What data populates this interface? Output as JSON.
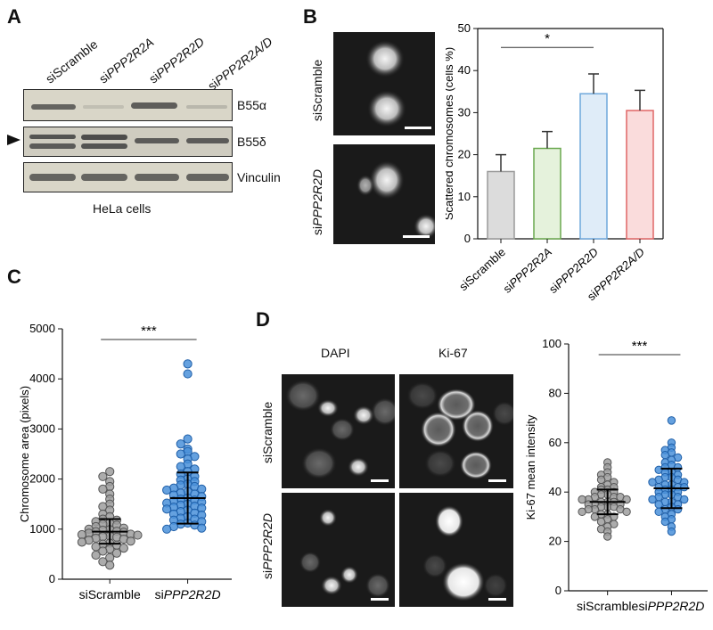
{
  "panels": {
    "A": {
      "label": "A",
      "lanes": [
        {
          "pre": "si",
          "name": "Scramble",
          "italic": false
        },
        {
          "pre": "si",
          "name": "PPP2R2A",
          "italic": true
        },
        {
          "pre": "si",
          "name": "PPP2R2D",
          "italic": true
        },
        {
          "pre": "si",
          "name": "PPP2R2A/D",
          "italic": true
        }
      ],
      "blots": [
        "B55α",
        "B55δ",
        "Vinculin"
      ],
      "caption": "HeLa cells",
      "arrow_row": "B55δ"
    },
    "B": {
      "label": "B",
      "image_rows": [
        {
          "pre": "si",
          "name": "Scramble",
          "italic": false
        },
        {
          "pre": "si",
          "name": "PPP2R2D",
          "italic": true
        }
      ]
    },
    "C": {
      "label": "C"
    },
    "D": {
      "label": "D",
      "columns": [
        "DAPI",
        "Ki-67"
      ],
      "image_rows": [
        {
          "pre": "si",
          "name": "Scramble",
          "italic": false
        },
        {
          "pre": "si",
          "name": "PPP2R2D",
          "italic": true
        }
      ]
    }
  },
  "chart_data": [
    {
      "panel": "B",
      "type": "bar",
      "ylabel": "Scattered chromosomes (cells %)",
      "ylim": [
        0,
        50
      ],
      "yticks": [
        0,
        10,
        20,
        30,
        40,
        50
      ],
      "categories": [
        {
          "pre": "si",
          "name": "Scramble",
          "italic": false
        },
        {
          "pre": "si",
          "name": "PPP2R2A",
          "italic": true
        },
        {
          "pre": "si",
          "name": "PPP2R2D",
          "italic": true
        },
        {
          "pre": "si",
          "name": "PPP2R2A/D",
          "italic": true
        }
      ],
      "values": [
        16,
        21.5,
        34.5,
        30.5
      ],
      "errors": [
        4,
        4,
        4.7,
        4.8
      ],
      "colors": [
        "#9a9a9a",
        "#6aa84f",
        "#6fa8dc",
        "#e06666"
      ],
      "fills": [
        "#dcdcdc",
        "#e5f2dc",
        "#dfecf8",
        "#fadcdc"
      ],
      "significance": {
        "from": 0,
        "to": 2,
        "text": "*"
      }
    },
    {
      "panel": "C",
      "type": "scatter",
      "ylabel": "Chromosome area (pixels)",
      "ylim": [
        0,
        5000
      ],
      "yticks": [
        0,
        1000,
        2000,
        3000,
        4000,
        5000
      ],
      "categories": [
        {
          "pre": "si",
          "name": "Scramble",
          "italic": false
        },
        {
          "pre": "si",
          "name": "PPP2R2D",
          "italic": true
        }
      ],
      "groups": [
        {
          "mean": 950,
          "sd_low": 710,
          "sd_high": 1200,
          "color": "#9e9e9e",
          "edge": "#555555",
          "values": [
            2150,
            2050,
            1950,
            1850,
            1800,
            1700,
            1600,
            1500,
            1450,
            1380,
            1300,
            1250,
            1200,
            1180,
            1150,
            1120,
            1100,
            1080,
            1050,
            1020,
            1000,
            990,
            980,
            960,
            950,
            940,
            920,
            900,
            890,
            880,
            860,
            850,
            840,
            820,
            800,
            780,
            760,
            740,
            720,
            700,
            680,
            650,
            620,
            600,
            560,
            520,
            480,
            430,
            350,
            280
          ]
        },
        {
          "mean": 1620,
          "sd_low": 1110,
          "sd_high": 2130,
          "color": "#4a90d9",
          "edge": "#1f5fa8",
          "values": [
            4300,
            4100,
            2800,
            2700,
            2600,
            2550,
            2500,
            2450,
            2400,
            2300,
            2250,
            2200,
            2150,
            2100,
            2050,
            2000,
            1980,
            1950,
            1900,
            1880,
            1850,
            1820,
            1800,
            1780,
            1750,
            1720,
            1700,
            1680,
            1650,
            1620,
            1600,
            1580,
            1560,
            1540,
            1520,
            1500,
            1480,
            1460,
            1440,
            1420,
            1400,
            1380,
            1350,
            1320,
            1300,
            1280,
            1250,
            1220,
            1200,
            1180,
            1150,
            1120,
            1100,
            1080,
            1050,
            1020,
            1000
          ]
        }
      ],
      "significance": {
        "from": 0,
        "to": 1,
        "text": "***"
      }
    },
    {
      "panel": "D",
      "type": "scatter",
      "ylabel": "Ki-67 mean intensity",
      "ylim": [
        0,
        100
      ],
      "yticks": [
        0,
        20,
        40,
        60,
        80,
        100
      ],
      "categories": [
        {
          "pre": "",
          "name": "siScramble",
          "italic": false
        },
        {
          "pre": "si",
          "name": "PPP2R2D",
          "italic": true
        }
      ],
      "groups": [
        {
          "mean": 36,
          "sd_low": 31,
          "sd_high": 41,
          "color": "#9e9e9e",
          "edge": "#555555",
          "values": [
            52,
            50,
            48,
            47,
            46,
            45,
            44,
            43,
            42,
            42,
            41,
            41,
            40,
            40,
            39,
            39,
            38,
            38,
            38,
            37,
            37,
            37,
            36,
            36,
            36,
            35,
            35,
            35,
            34,
            34,
            34,
            33,
            33,
            33,
            32,
            32,
            31,
            31,
            30,
            30,
            29,
            28,
            27,
            26,
            25,
            24,
            22
          ]
        },
        {
          "mean": 41.5,
          "sd_low": 33.5,
          "sd_high": 49.5,
          "color": "#4a90d9",
          "edge": "#1f5fa8",
          "values": [
            69,
            60,
            58,
            57,
            56,
            55,
            54,
            53,
            52,
            51,
            50,
            50,
            49,
            48,
            48,
            47,
            46,
            46,
            45,
            45,
            44,
            44,
            43,
            43,
            42,
            42,
            42,
            41,
            41,
            40,
            40,
            39,
            39,
            38,
            38,
            37,
            37,
            36,
            36,
            35,
            35,
            34,
            33,
            33,
            32,
            31,
            30,
            29,
            28,
            26,
            24
          ]
        }
      ],
      "significance": {
        "from": 0,
        "to": 1,
        "text": "***"
      }
    }
  ]
}
